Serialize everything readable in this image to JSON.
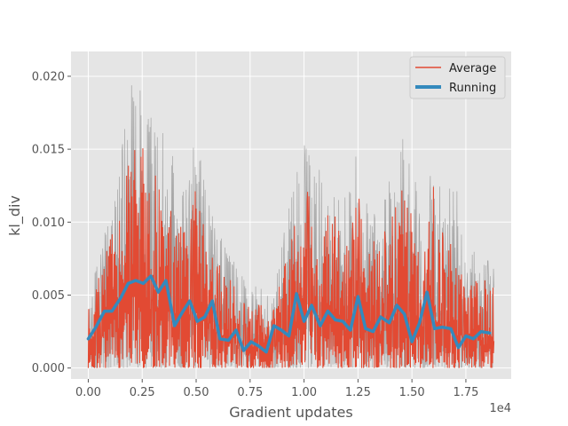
{
  "chart_data": {
    "type": "line",
    "xlabel": "Gradient updates",
    "ylabel": "kl_div",
    "x_offset_text": "1e4",
    "xlim": [
      -800,
      19600
    ],
    "ylim": [
      -0.00075,
      0.0217
    ],
    "x_ticks": [
      0,
      2500,
      5000,
      7500,
      10000,
      12500,
      15000,
      17500
    ],
    "x_tick_labels": [
      "0.00",
      "0.25",
      "0.50",
      "0.75",
      "1.00",
      "1.25",
      "1.50",
      "1.75"
    ],
    "y_ticks": [
      0.0,
      0.005,
      0.01,
      0.015,
      0.02
    ],
    "y_tick_labels": [
      "0.000",
      "0.005",
      "0.010",
      "0.015",
      "0.020"
    ],
    "grid": true,
    "legend_position": "top-right",
    "colors": {
      "background": "#E5E5E5",
      "grid": "#FFFFFF",
      "average": "#E24A33",
      "running": "#348ABD",
      "raw": "#999999"
    },
    "series": [
      {
        "name": "Average",
        "style": "dense-noisy",
        "noise_seed": 7,
        "x_range": [
          0,
          18800
        ],
        "points": 900,
        "envelope": [
          [
            0,
            0.004
          ],
          [
            700,
            0.0075
          ],
          [
            1300,
            0.01
          ],
          [
            2000,
            0.015
          ],
          [
            2500,
            0.0155
          ],
          [
            3000,
            0.0135
          ],
          [
            3500,
            0.0125
          ],
          [
            4000,
            0.0105
          ],
          [
            4500,
            0.0095
          ],
          [
            5000,
            0.0125
          ],
          [
            5500,
            0.0095
          ],
          [
            6000,
            0.0075
          ],
          [
            6500,
            0.0063
          ],
          [
            7000,
            0.0055
          ],
          [
            7500,
            0.004
          ],
          [
            8000,
            0.0045
          ],
          [
            8500,
            0.0035
          ],
          [
            9000,
            0.007
          ],
          [
            9500,
            0.01
          ],
          [
            10000,
            0.0125
          ],
          [
            10500,
            0.0115
          ],
          [
            11000,
            0.0105
          ],
          [
            11500,
            0.0105
          ],
          [
            12000,
            0.0095
          ],
          [
            12500,
            0.012
          ],
          [
            13000,
            0.0085
          ],
          [
            13500,
            0.009
          ],
          [
            14000,
            0.01
          ],
          [
            14500,
            0.0123
          ],
          [
            15000,
            0.0115
          ],
          [
            15500,
            0.007
          ],
          [
            16000,
            0.0125
          ],
          [
            16500,
            0.0088
          ],
          [
            17000,
            0.0085
          ],
          [
            17500,
            0.005
          ],
          [
            18000,
            0.0065
          ],
          [
            18800,
            0.0055
          ]
        ]
      },
      {
        "name": "raw",
        "style": "dense-noisy",
        "noise_seed": 19,
        "x_range": [
          0,
          18800
        ],
        "points": 900,
        "envelope": [
          [
            0,
            0.005
          ],
          [
            700,
            0.009
          ],
          [
            1300,
            0.0125
          ],
          [
            2000,
            0.0195
          ],
          [
            2500,
            0.0205
          ],
          [
            3000,
            0.0175
          ],
          [
            3500,
            0.016
          ],
          [
            4000,
            0.0145
          ],
          [
            4500,
            0.012
          ],
          [
            5000,
            0.0165
          ],
          [
            5500,
            0.012
          ],
          [
            6000,
            0.0095
          ],
          [
            6500,
            0.008
          ],
          [
            7000,
            0.007
          ],
          [
            7500,
            0.0053
          ],
          [
            8000,
            0.006
          ],
          [
            8500,
            0.0045
          ],
          [
            9000,
            0.009
          ],
          [
            9500,
            0.0125
          ],
          [
            10000,
            0.0158
          ],
          [
            10500,
            0.0145
          ],
          [
            11000,
            0.0138
          ],
          [
            11500,
            0.0135
          ],
          [
            12000,
            0.0123
          ],
          [
            12500,
            0.0155
          ],
          [
            13000,
            0.011
          ],
          [
            13500,
            0.0115
          ],
          [
            14000,
            0.013
          ],
          [
            14500,
            0.016
          ],
          [
            15000,
            0.0145
          ],
          [
            15500,
            0.0093
          ],
          [
            16000,
            0.016
          ],
          [
            16500,
            0.0115
          ],
          [
            17000,
            0.0133
          ],
          [
            17500,
            0.0068
          ],
          [
            18000,
            0.0085
          ],
          [
            18800,
            0.0075
          ]
        ]
      },
      {
        "name": "Running",
        "style": "line",
        "x": [
          0,
          350,
          750,
          1100,
          1500,
          1850,
          2200,
          2550,
          2900,
          3250,
          3600,
          4000,
          4350,
          4700,
          5050,
          5400,
          5750,
          6100,
          6500,
          6850,
          7200,
          7550,
          7900,
          8250,
          8600,
          8950,
          9300,
          9650,
          10000,
          10350,
          10750,
          11100,
          11450,
          11800,
          12150,
          12500,
          12850,
          13200,
          13550,
          13950,
          14300,
          14650,
          15000,
          15350,
          15700,
          16050,
          16400,
          16800,
          17150,
          17500,
          17850,
          18200,
          18600
        ],
        "y": [
          0.002,
          0.0028,
          0.0039,
          0.0039,
          0.0048,
          0.0058,
          0.006,
          0.0058,
          0.0063,
          0.0052,
          0.006,
          0.0029,
          0.0038,
          0.0046,
          0.0032,
          0.0035,
          0.0046,
          0.002,
          0.0019,
          0.0026,
          0.0012,
          0.0018,
          0.0015,
          0.0011,
          0.0029,
          0.0026,
          0.0022,
          0.0051,
          0.0032,
          0.0043,
          0.0029,
          0.0039,
          0.0033,
          0.0032,
          0.0026,
          0.0049,
          0.0027,
          0.0025,
          0.0035,
          0.0031,
          0.0043,
          0.0037,
          0.0018,
          0.0031,
          0.0052,
          0.0027,
          0.0028,
          0.0027,
          0.0014,
          0.0022,
          0.002,
          0.0025,
          0.0024
        ]
      }
    ],
    "legend": [
      {
        "label": "Average",
        "color": "#E24A33",
        "width": 1.5
      },
      {
        "label": "Running",
        "color": "#348ABD",
        "width": 4
      }
    ]
  }
}
